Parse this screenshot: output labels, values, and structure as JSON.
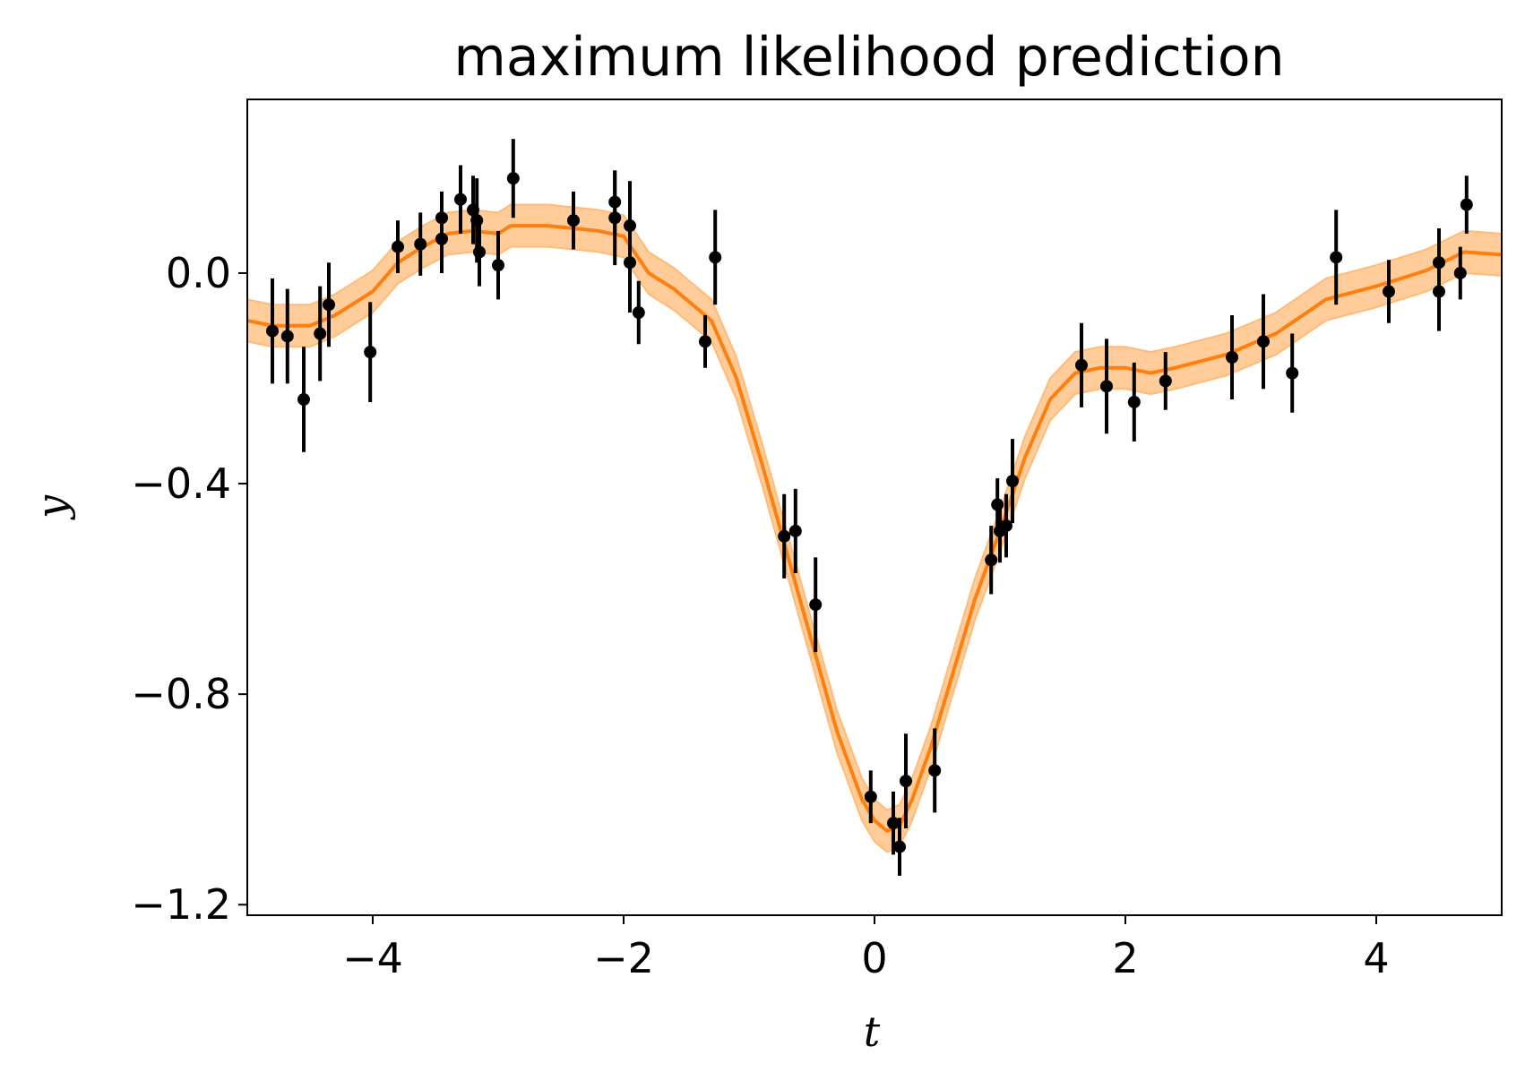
{
  "chart_data": {
    "type": "line",
    "title": "maximum likelihood prediction",
    "xlabel": "t",
    "ylabel": "y",
    "xlim": [
      -5,
      5
    ],
    "ylim": [
      -1.22,
      0.33
    ],
    "grid": false,
    "x_ticks": [
      {
        "value": -4,
        "label": "−4"
      },
      {
        "value": -2,
        "label": "−2"
      },
      {
        "value": 0,
        "label": "0"
      },
      {
        "value": 2,
        "label": "2"
      },
      {
        "value": 4,
        "label": "4"
      }
    ],
    "y_ticks": [
      {
        "value": 0.0,
        "label": "0.0"
      },
      {
        "value": -0.4,
        "label": "−0.4"
      },
      {
        "value": -0.8,
        "label": "−0.8"
      },
      {
        "value": -1.2,
        "label": "−1.2"
      }
    ],
    "colors": {
      "prediction": "#ff7f0e",
      "band": "#ffbb78",
      "data": "#000000"
    },
    "prediction": {
      "t": [
        -5.0,
        -4.8,
        -4.6,
        -4.5,
        -4.3,
        -4.0,
        -3.8,
        -3.6,
        -3.4,
        -3.2,
        -3.0,
        -2.9,
        -2.6,
        -2.4,
        -2.2,
        -2.0,
        -1.8,
        -1.6,
        -1.4,
        -1.3,
        -1.1,
        -0.9,
        -0.7,
        -0.5,
        -0.3,
        -0.1,
        0.0,
        0.1,
        0.2,
        0.3,
        0.45,
        0.6,
        0.8,
        1.0,
        1.2,
        1.4,
        1.6,
        1.8,
        2.0,
        2.2,
        2.4,
        2.8,
        3.2,
        3.6,
        4.0,
        4.4,
        4.7,
        5.0
      ],
      "mean": [
        -0.09,
        -0.1,
        -0.1,
        -0.1,
        -0.08,
        -0.035,
        0.02,
        0.05,
        0.075,
        0.08,
        0.075,
        0.09,
        0.09,
        0.085,
        0.08,
        0.07,
        0.0,
        -0.03,
        -0.07,
        -0.09,
        -0.2,
        -0.36,
        -0.53,
        -0.7,
        -0.87,
        -1.0,
        -1.04,
        -1.06,
        -1.05,
        -1.0,
        -0.9,
        -0.78,
        -0.62,
        -0.49,
        -0.35,
        -0.24,
        -0.19,
        -0.18,
        -0.18,
        -0.19,
        -0.18,
        -0.155,
        -0.115,
        -0.05,
        -0.025,
        0.005,
        0.04,
        0.035
      ],
      "sigma": 0.04
    },
    "observations": [
      {
        "t": -4.8,
        "y": -0.11,
        "err": 0.1
      },
      {
        "t": -4.68,
        "y": -0.12,
        "err": 0.09
      },
      {
        "t": -4.55,
        "y": -0.24,
        "err": 0.1
      },
      {
        "t": -4.42,
        "y": -0.115,
        "err": 0.09
      },
      {
        "t": -4.35,
        "y": -0.06,
        "err": 0.08
      },
      {
        "t": -4.02,
        "y": -0.15,
        "err": 0.095
      },
      {
        "t": -3.8,
        "y": 0.05,
        "err": 0.05
      },
      {
        "t": -3.62,
        "y": 0.055,
        "err": 0.06
      },
      {
        "t": -3.45,
        "y": 0.065,
        "err": 0.065
      },
      {
        "t": -3.45,
        "y": 0.105,
        "err": 0.05
      },
      {
        "t": -3.3,
        "y": 0.14,
        "err": 0.065
      },
      {
        "t": -3.2,
        "y": 0.12,
        "err": 0.065
      },
      {
        "t": -3.17,
        "y": 0.1,
        "err": 0.08
      },
      {
        "t": -3.15,
        "y": 0.04,
        "err": 0.065
      },
      {
        "t": -3.0,
        "y": 0.015,
        "err": 0.065
      },
      {
        "t": -2.88,
        "y": 0.18,
        "err": 0.075
      },
      {
        "t": -2.4,
        "y": 0.1,
        "err": 0.055
      },
      {
        "t": -2.07,
        "y": 0.135,
        "err": 0.06
      },
      {
        "t": -2.07,
        "y": 0.105,
        "err": 0.09
      },
      {
        "t": -1.95,
        "y": 0.09,
        "err": 0.085
      },
      {
        "t": -1.95,
        "y": 0.02,
        "err": 0.095
      },
      {
        "t": -1.88,
        "y": -0.075,
        "err": 0.06
      },
      {
        "t": -1.35,
        "y": -0.13,
        "err": 0.05
      },
      {
        "t": -1.27,
        "y": 0.03,
        "err": 0.09
      },
      {
        "t": -0.72,
        "y": -0.5,
        "err": 0.08
      },
      {
        "t": -0.63,
        "y": -0.49,
        "err": 0.08
      },
      {
        "t": -0.47,
        "y": -0.63,
        "err": 0.09
      },
      {
        "t": -0.03,
        "y": -0.995,
        "err": 0.05
      },
      {
        "t": 0.15,
        "y": -1.045,
        "err": 0.06
      },
      {
        "t": 0.2,
        "y": -1.09,
        "err": 0.055
      },
      {
        "t": 0.25,
        "y": -0.965,
        "err": 0.09
      },
      {
        "t": 0.48,
        "y": -0.945,
        "err": 0.08
      },
      {
        "t": 0.93,
        "y": -0.545,
        "err": 0.065
      },
      {
        "t": 0.98,
        "y": -0.44,
        "err": 0.05
      },
      {
        "t": 1.0,
        "y": -0.49,
        "err": 0.06
      },
      {
        "t": 1.05,
        "y": -0.48,
        "err": 0.06
      },
      {
        "t": 1.1,
        "y": -0.395,
        "err": 0.08
      },
      {
        "t": 1.65,
        "y": -0.175,
        "err": 0.08
      },
      {
        "t": 1.85,
        "y": -0.215,
        "err": 0.09
      },
      {
        "t": 2.07,
        "y": -0.245,
        "err": 0.075
      },
      {
        "t": 2.32,
        "y": -0.205,
        "err": 0.055
      },
      {
        "t": 2.85,
        "y": -0.16,
        "err": 0.08
      },
      {
        "t": 3.1,
        "y": -0.13,
        "err": 0.09
      },
      {
        "t": 3.33,
        "y": -0.19,
        "err": 0.075
      },
      {
        "t": 3.68,
        "y": 0.03,
        "err": 0.09
      },
      {
        "t": 4.1,
        "y": -0.035,
        "err": 0.06
      },
      {
        "t": 4.5,
        "y": -0.035,
        "err": 0.075
      },
      {
        "t": 4.5,
        "y": 0.02,
        "err": 0.065
      },
      {
        "t": 4.67,
        "y": 0.0,
        "err": 0.05
      },
      {
        "t": 4.72,
        "y": 0.13,
        "err": 0.055
      }
    ]
  }
}
